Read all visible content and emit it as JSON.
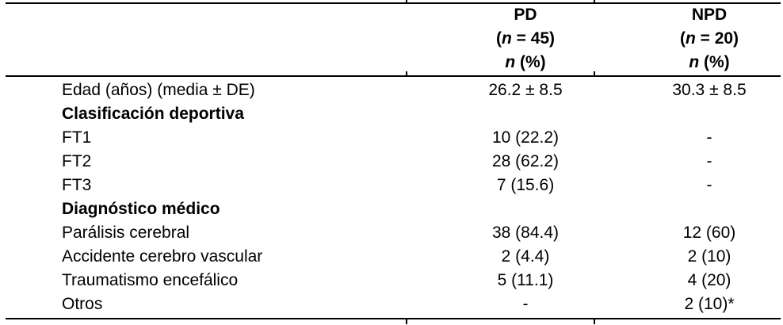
{
  "table": {
    "header": {
      "pd": {
        "title": "PD",
        "n_open": "(",
        "n_sym": "n",
        "n_rest": " = 45)",
        "unit_sym": "n",
        "unit_rest": " (%)"
      },
      "npd": {
        "title": "NPD",
        "n_open": "(",
        "n_sym": "n",
        "n_rest": " = 20)",
        "unit_sym": "n",
        "unit_rest": " (%)"
      }
    },
    "rows": [
      {
        "label": "Edad (años) (media ± DE)",
        "pd": "26.2 ± 8.5",
        "npd": "30.3 ± 8.5"
      },
      {
        "label": "Clasificación deportiva",
        "pd": "",
        "npd": ""
      },
      {
        "label": "FT1",
        "pd": "10 (22.2)",
        "npd": "-"
      },
      {
        "label": "FT2",
        "pd": "28 (62.2)",
        "npd": "-"
      },
      {
        "label": "FT3",
        "pd": "7 (15.6)",
        "npd": "-"
      },
      {
        "label": "Diagnóstico médico",
        "pd": "",
        "npd": ""
      },
      {
        "label": "Parálisis cerebral",
        "pd": "38 (84.4)",
        "npd": "12 (60)"
      },
      {
        "label": "Accidente cerebro vascular",
        "pd": "2 (4.4)",
        "npd": "2 (10)"
      },
      {
        "label": "Traumatismo encefálico",
        "pd": "5 (11.1)",
        "npd": "4 (20)"
      },
      {
        "label": "Otros",
        "pd": "-",
        "npd": "2 (10)*"
      }
    ]
  },
  "colors": {
    "text": "#000000",
    "border": "#000000",
    "background": "#ffffff"
  }
}
